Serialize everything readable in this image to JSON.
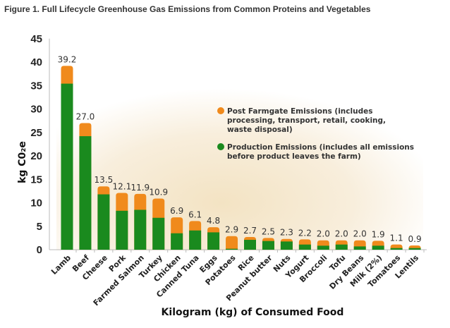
{
  "chart_data": {
    "type": "bar",
    "stacked": true,
    "title": "Figure 1. Full Lifecycle Greenhouse Gas Emissions from Common Proteins and Vegetables",
    "xlabel": "Kilogram (kg) of Consumed Food",
    "ylabel": "kg C0₂e",
    "ylim": [
      0,
      45
    ],
    "yticks": [
      0,
      5,
      10,
      15,
      20,
      25,
      30,
      35,
      40,
      45
    ],
    "grid": false,
    "legend_position": "right",
    "categories": [
      "Lamb",
      "Beef",
      "Cheese",
      "Pork",
      "Farmed Salmon",
      "Turkey",
      "Chicken",
      "Canned Tuna",
      "Eggs",
      "Potatoes",
      "Rice",
      "Peanut butter",
      "Nuts",
      "Yogurt",
      "Broccoli",
      "Tofu",
      "Dry Beans",
      "Milk (2%)",
      "Tomatoes",
      "Lentils"
    ],
    "totals": [
      39.2,
      27.0,
      13.5,
      12.1,
      11.9,
      10.9,
      6.9,
      6.1,
      4.8,
      2.9,
      2.7,
      2.5,
      2.3,
      2.2,
      2.0,
      2.0,
      2.0,
      1.9,
      1.1,
      0.9
    ],
    "total_labels": [
      "39.2",
      "27.0",
      "13.5",
      "12.1",
      "11.9",
      "10.9",
      "6.9",
      "6.1",
      "4.8",
      "2.9",
      "2.7",
      "2.5",
      "2.3",
      "2.2",
      "2.0",
      "2.0",
      "2.0",
      "1.9",
      "1.1",
      "0.9"
    ],
    "series": [
      {
        "name": "Production Emissions (includes all emissions before product leaves the farm)",
        "legend_lines": [
          "Production Emissions (includes all emissions",
          "before product leaves the farm)"
        ],
        "color": "#1a8a1e",
        "values": [
          35.4,
          24.2,
          11.8,
          8.3,
          8.5,
          6.8,
          3.5,
          4.1,
          3.7,
          0.2,
          2.1,
          1.85,
          1.75,
          1.1,
          0.85,
          1.1,
          0.7,
          0.85,
          0.35,
          0.35
        ]
      },
      {
        "name": "Post Farmgate Emissions (includes processing, transport, retail, cooking, waste disposal)",
        "legend_lines": [
          "Post Farmgate Emissions (includes",
          "processing, transport, retail, cooking,",
          "waste disposal)"
        ],
        "color": "#f08a1c",
        "values": [
          3.8,
          2.8,
          1.7,
          3.8,
          3.4,
          4.1,
          3.4,
          2.0,
          1.1,
          2.7,
          0.6,
          0.65,
          0.55,
          1.1,
          1.15,
          0.9,
          1.3,
          1.05,
          0.75,
          0.55
        ]
      }
    ]
  }
}
